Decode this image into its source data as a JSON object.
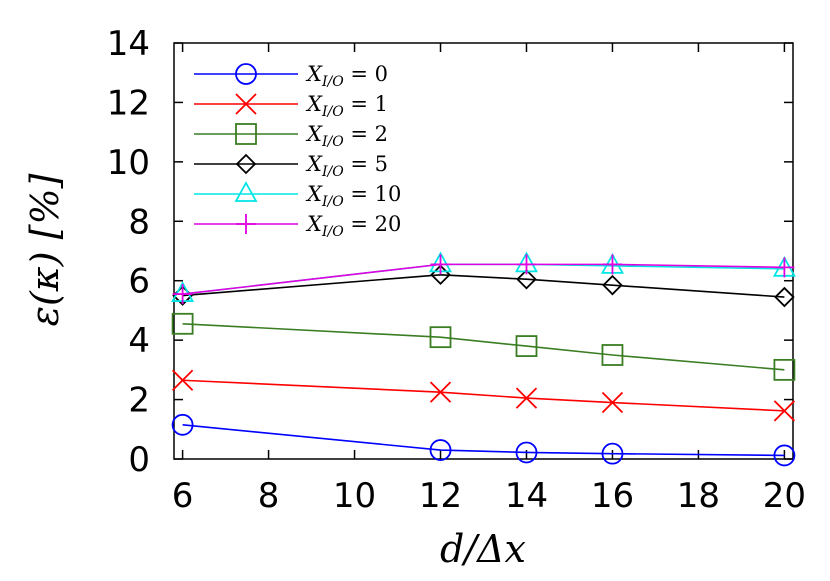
{
  "chart_data": {
    "type": "line",
    "xlabel": "d/Δx",
    "ylabel": "ε(κ) [%]",
    "xlim": [
      5.8,
      20.2
    ],
    "ylim": [
      0,
      14
    ],
    "xticks": [
      6,
      8,
      10,
      12,
      14,
      16,
      18,
      20
    ],
    "yticks": [
      0,
      2,
      4,
      6,
      8,
      10,
      12,
      14
    ],
    "grid": false,
    "legend_position": "top-left",
    "x": [
      6,
      12,
      14,
      16,
      20
    ],
    "series": [
      {
        "name": "X_{I/O} = 0",
        "label": "X",
        "sub": "I/O",
        "rhs": " = 0",
        "color": "#0000ff",
        "marker": "circle",
        "values": [
          1.15,
          0.3,
          0.22,
          0.18,
          0.12
        ]
      },
      {
        "name": "X_{I/O} = 1",
        "label": "X",
        "sub": "I/O",
        "rhs": " = 1",
        "color": "#ff0000",
        "marker": "x",
        "values": [
          2.65,
          2.25,
          2.05,
          1.9,
          1.62
        ]
      },
      {
        "name": "X_{I/O} = 2",
        "label": "X",
        "sub": "I/O",
        "rhs": " = 2",
        "color": "#3a7d23",
        "marker": "square",
        "values": [
          4.55,
          4.1,
          3.8,
          3.5,
          3.0
        ]
      },
      {
        "name": "X_{I/O} = 5",
        "label": "X",
        "sub": "I/O",
        "rhs": " = 5",
        "color": "#000000",
        "marker": "diamond",
        "values": [
          5.5,
          6.2,
          6.05,
          5.85,
          5.45
        ]
      },
      {
        "name": "X_{I/O} = 10",
        "label": "X",
        "sub": "I/O",
        "rhs": " = 10",
        "color": "#00e5e5",
        "marker": "triangle",
        "values": [
          5.55,
          6.55,
          6.55,
          6.5,
          6.4
        ]
      },
      {
        "name": "X_{I/O} = 20",
        "label": "X",
        "sub": "I/O",
        "rhs": " = 20",
        "color": "#e000e0",
        "marker": "plus",
        "values": [
          5.55,
          6.55,
          6.55,
          6.55,
          6.45
        ]
      }
    ]
  }
}
